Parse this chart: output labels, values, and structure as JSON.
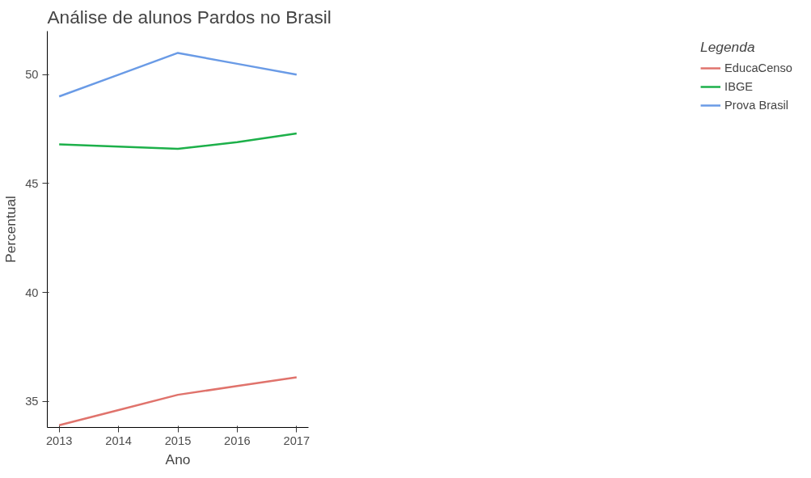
{
  "chart_data": {
    "type": "line",
    "title": "Análise de alunos Pardos no Brasil",
    "xlabel": "Ano",
    "ylabel": "Percentual",
    "legend_title": "Legenda",
    "legend": "right",
    "grid": false,
    "x": [
      2013,
      2014,
      2015,
      2016,
      2017
    ],
    "xlim": [
      2012.8,
      2017.2
    ],
    "xticks": [
      2013,
      2014,
      2015,
      2016,
      2017
    ],
    "ylim": [
      33.8,
      52
    ],
    "yticks": [
      35,
      40,
      45,
      50
    ],
    "series": [
      {
        "name": "EducaCenso",
        "color": "#e0736c",
        "values": [
          33.9,
          34.6,
          35.3,
          35.7,
          36.1
        ]
      },
      {
        "name": "IBGE",
        "color": "#1db04a",
        "values": [
          46.8,
          46.7,
          46.6,
          46.9,
          47.3
        ]
      },
      {
        "name": "Prova Brasil",
        "color": "#6a9be6",
        "values": [
          49.0,
          50.0,
          51.0,
          50.5,
          50.0
        ]
      }
    ]
  }
}
